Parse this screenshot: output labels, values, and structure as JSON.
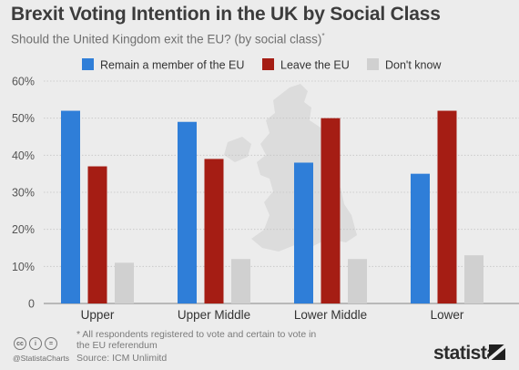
{
  "header": {
    "title": "Brexit Voting Intention in the UK by Social Class",
    "subtitle": "Should the United Kingdom exit the EU? (by social class)",
    "subtitle_mark": "*"
  },
  "footer": {
    "footnote": "* All respondents registered to vote and certain to vote in the EU referendum",
    "source": "Source: ICM Unlimitd",
    "handle": "@StatistaCharts",
    "brand": "statista",
    "license_icons": [
      "cc-icon",
      "by-icon",
      "nd-icon"
    ]
  },
  "chart_data": {
    "type": "bar",
    "categories": [
      "Upper",
      "Upper Middle",
      "Lower Middle",
      "Lower"
    ],
    "series": [
      {
        "name": "Remain a member of the EU",
        "values": [
          52,
          49,
          38,
          35
        ],
        "color": "#2f7ed8"
      },
      {
        "name": "Leave the EU",
        "values": [
          37,
          39,
          50,
          52
        ],
        "color": "#a51d14"
      },
      {
        "name": "Don't know",
        "values": [
          11,
          12,
          12,
          13
        ],
        "color": "#d0d0d0"
      }
    ],
    "yticks": [
      "0",
      "10%",
      "20%",
      "30%",
      "40%",
      "50%",
      "60%"
    ],
    "ylim": [
      0,
      60
    ],
    "grid": true,
    "legend": "top",
    "background_image": "uk-map"
  }
}
